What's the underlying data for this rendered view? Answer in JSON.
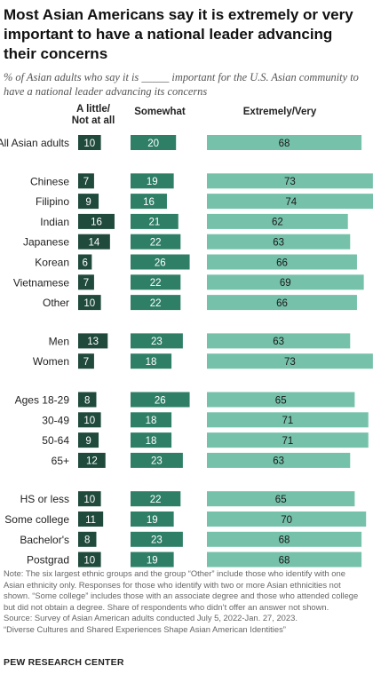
{
  "title": "Most Asian Americans say it is extremely or very important to have a national leader advancing their concerns",
  "subtitle": "% of Asian adults who say it is _____ important for the U.S. Asian community to have a national leader advancing its concerns",
  "chart_data": {
    "type": "bar",
    "columns": [
      "A little/ Not at all",
      "Somewhat",
      "Extremely/Very"
    ],
    "groups": [
      {
        "rows": [
          {
            "label": "All Asian adults",
            "values": [
              10,
              20,
              68
            ]
          }
        ]
      },
      {
        "rows": [
          {
            "label": "Chinese",
            "values": [
              7,
              19,
              73
            ]
          },
          {
            "label": "Filipino",
            "values": [
              9,
              16,
              74
            ]
          },
          {
            "label": "Indian",
            "values": [
              16,
              21,
              62
            ]
          },
          {
            "label": "Japanese",
            "values": [
              14,
              22,
              63
            ]
          },
          {
            "label": "Korean",
            "values": [
              6,
              26,
              66
            ]
          },
          {
            "label": "Vietnamese",
            "values": [
              7,
              22,
              69
            ]
          },
          {
            "label": "Other",
            "values": [
              10,
              22,
              66
            ]
          }
        ]
      },
      {
        "rows": [
          {
            "label": "Men",
            "values": [
              13,
              23,
              63
            ]
          },
          {
            "label": "Women",
            "values": [
              7,
              18,
              73
            ]
          }
        ]
      },
      {
        "rows": [
          {
            "label": "Ages 18-29",
            "values": [
              8,
              26,
              65
            ]
          },
          {
            "label": "30-49",
            "values": [
              10,
              18,
              71
            ]
          },
          {
            "label": "50-64",
            "values": [
              9,
              18,
              71
            ]
          },
          {
            "label": "65+",
            "values": [
              12,
              23,
              63
            ]
          }
        ]
      },
      {
        "rows": [
          {
            "label": "HS or less",
            "values": [
              10,
              22,
              65
            ]
          },
          {
            "label": "Some college",
            "values": [
              11,
              19,
              70
            ]
          },
          {
            "label": "Bachelor's",
            "values": [
              8,
              23,
              68
            ]
          },
          {
            "label": "Postgrad",
            "values": [
              10,
              19,
              68
            ]
          }
        ]
      }
    ],
    "colors": [
      "#1f4a3c",
      "#2f7f67",
      "#76c1aa"
    ]
  },
  "column_headers": {
    "little_line1": "A little/",
    "little_line2": "Not at all",
    "somewhat": "Somewhat",
    "extremely": "Extremely/Very"
  },
  "note": "Note: The six largest ethnic groups and the group “Other” include those who identify with one Asian ethnicity only. Responses for those who identify with two or more Asian ethnicities not shown. “Some college” includes those with an associate degree and those who attended college but did not obtain a degree. Share of respondents who didn’t offer an answer not shown.",
  "source": "Source: Survey of Asian American adults conducted July 5, 2022-Jan. 27, 2023.",
  "report": "“Diverse Cultures and Shared Experiences Shape Asian American Identities”",
  "brand": "PEW RESEARCH CENTER"
}
